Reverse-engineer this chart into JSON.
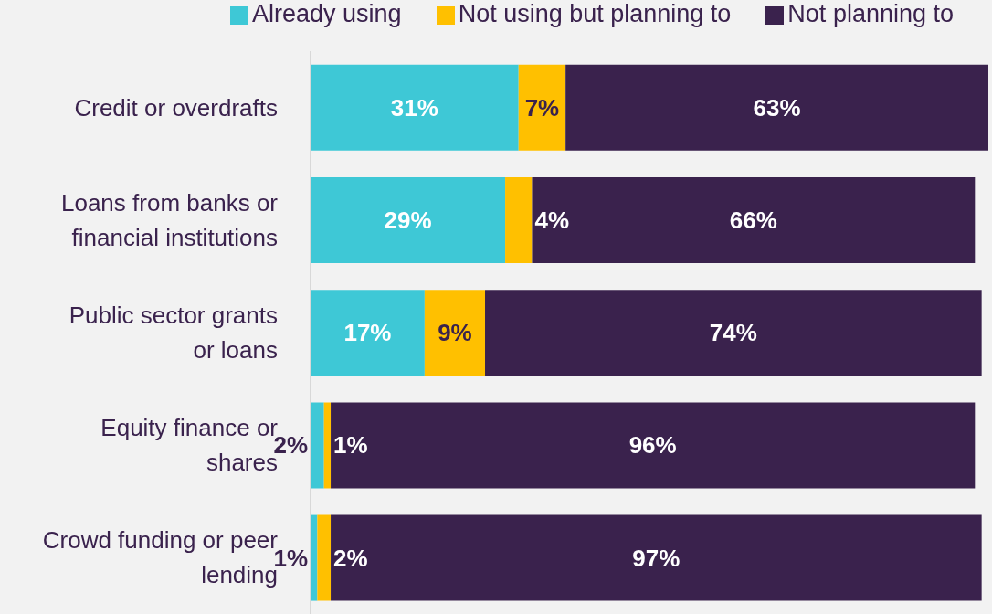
{
  "chart_data": {
    "type": "bar",
    "orientation": "horizontal",
    "stacked": true,
    "legend": "top",
    "grid": false,
    "categories": [
      "Credit or overdrafts",
      "Loans from banks or financial institutions",
      "Public sector grants or loans",
      "Equity finance or shares",
      "Crowd funding or peer lending"
    ],
    "series": [
      {
        "name": "Already using",
        "color": "#3ec8d6",
        "values": [
          31,
          29,
          17,
          2,
          1
        ],
        "value_labels": [
          "31%",
          "29%",
          "17%",
          "2%",
          "1%"
        ]
      },
      {
        "name": "Not using but planning to",
        "color": "#ffc000",
        "values": [
          7,
          4,
          9,
          1,
          2
        ],
        "value_labels": [
          "7%",
          "4%",
          "9%",
          "1%",
          "2%"
        ]
      },
      {
        "name": "Not planning to",
        "color": "#3a224d",
        "values": [
          63,
          66,
          74,
          96,
          97
        ],
        "value_labels": [
          "63%",
          "66%",
          "74%",
          "96%",
          "97%"
        ]
      }
    ]
  }
}
